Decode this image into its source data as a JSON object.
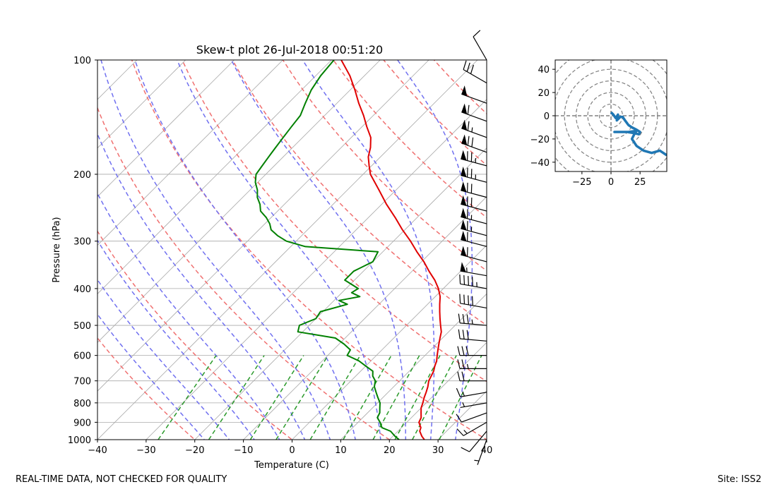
{
  "chart_data": [
    {
      "type": "line",
      "title": "Skew-t plot 26-Jul-2018 00:51:20",
      "xlabel": "Temperature (C)",
      "ylabel": "Pressure (hPa)",
      "xlim": [
        -40,
        40
      ],
      "ylim": [
        1000,
        100
      ],
      "y_scale": "log",
      "x_ticks": [
        -40,
        -30,
        -20,
        -10,
        0,
        10,
        20,
        30,
        40
      ],
      "y_ticks": [
        100,
        200,
        300,
        400,
        500,
        600,
        700,
        800,
        900,
        1000
      ],
      "grid": true,
      "colors": {
        "temperature": "#e00000",
        "dewpoint": "#008000",
        "dry_adiabats": "#f07070",
        "moist_adiabats": "#7070f0",
        "mixing_ratio": "#2a9a2a",
        "isotherms": "#aaaaaa",
        "barbs": "#000000"
      },
      "series": [
        {
          "key": "temperature",
          "pressure": [
            1000,
            980,
            950,
            930,
            900,
            875,
            850,
            825,
            800,
            775,
            750,
            725,
            700,
            680,
            660,
            640,
            620,
            600,
            580,
            560,
            540,
            520,
            500,
            480,
            460,
            440,
            420,
            400,
            380,
            360,
            340,
            320,
            300,
            280,
            260,
            240,
            220,
            200,
            190,
            180,
            170,
            160,
            150,
            140,
            130,
            120,
            110,
            100
          ],
          "values": [
            27.2,
            26.0,
            24.5,
            24.0,
            22.5,
            22.0,
            21.0,
            20.0,
            19.3,
            18.5,
            17.8,
            17.0,
            16.0,
            15.5,
            15.0,
            14.2,
            13.5,
            12.5,
            11.5,
            10.5,
            9.5,
            8.5,
            7.0,
            5.5,
            4.0,
            2.5,
            1.0,
            -1.0,
            -3.5,
            -6.5,
            -9.5,
            -13.0,
            -16.5,
            -20.5,
            -24.5,
            -29.0,
            -33.5,
            -38.5,
            -40.5,
            -42.5,
            -44.0,
            -46.0,
            -49.0,
            -52.0,
            -55.5,
            -59.0,
            -63.0,
            -68.0
          ]
        },
        {
          "key": "dewpoint",
          "pressure": [
            1000,
            980,
            950,
            930,
            900,
            875,
            850,
            825,
            800,
            775,
            750,
            725,
            700,
            680,
            660,
            640,
            620,
            600,
            580,
            560,
            540,
            520,
            500,
            480,
            460,
            440,
            430,
            420,
            410,
            400,
            380,
            360,
            340,
            320,
            310,
            300,
            290,
            280,
            270,
            260,
            250,
            240,
            230,
            220,
            210,
            200,
            190,
            180,
            170,
            160,
            150,
            140,
            130,
            120,
            110,
            100
          ],
          "values": [
            22.0,
            20.5,
            18.5,
            16.0,
            14.5,
            13.0,
            12.5,
            11.5,
            10.5,
            9.0,
            7.5,
            6.0,
            5.0,
            3.5,
            2.5,
            0.0,
            -2.5,
            -6.0,
            -6.5,
            -9.0,
            -12.0,
            -21.0,
            -22.0,
            -20.0,
            -20.5,
            -16.5,
            -19.0,
            -15.5,
            -18.0,
            -17.5,
            -22.0,
            -22.0,
            -20.0,
            -21.0,
            -37.0,
            -42.0,
            -45.0,
            -47.5,
            -49.0,
            -51.0,
            -53.5,
            -55.0,
            -57.0,
            -58.5,
            -60.5,
            -62.0,
            -62.5,
            -63.0,
            -63.5,
            -64.0,
            -64.5,
            -65.0,
            -66.5,
            -68.0,
            -69.0,
            -69.5
          ]
        }
      ],
      "wind_barbs": {
        "pressure": [
          1000,
          950,
          900,
          850,
          800,
          750,
          700,
          650,
          600,
          550,
          500,
          450,
          400,
          370,
          340,
          310,
          290,
          270,
          250,
          230,
          210,
          190,
          175,
          160,
          145,
          130,
          115,
          100
        ],
        "speed_kt": [
          5,
          10,
          15,
          10,
          5,
          15,
          20,
          25,
          30,
          30,
          35,
          40,
          45,
          55,
          60,
          60,
          65,
          65,
          70,
          70,
          75,
          75,
          70,
          65,
          60,
          50,
          30,
          10
        ],
        "direction_deg": [
          200,
          220,
          240,
          250,
          260,
          260,
          270,
          270,
          270,
          275,
          275,
          280,
          280,
          280,
          285,
          285,
          285,
          285,
          285,
          285,
          285,
          285,
          290,
          290,
          290,
          290,
          300,
          330
        ]
      }
    },
    {
      "type": "line",
      "title": "",
      "xlim": [
        -48,
        48
      ],
      "ylim": [
        -48,
        48
      ],
      "x_ticks": [
        -25,
        0,
        25
      ],
      "y_ticks": [
        -40,
        -20,
        0,
        20,
        40
      ],
      "series": [
        {
          "key": "hodograph",
          "u": [
            0,
            2,
            4,
            6,
            5,
            8,
            10,
            12,
            15,
            18,
            22,
            25,
            24,
            20,
            14,
            8,
            3,
            3,
            15,
            22,
            20,
            18,
            22,
            28,
            35,
            42,
            48
          ],
          "v": [
            3,
            1,
            -2,
            1,
            -4,
            -1,
            -1,
            -4,
            -8,
            -10,
            -12,
            -14,
            -16,
            -15,
            -14,
            -14,
            -14,
            -14,
            -14,
            -13,
            -16,
            -20,
            -26,
            -30,
            -32,
            -30,
            -34
          ]
        }
      ],
      "color": "#1f77b4"
    }
  ],
  "footer": {
    "left": "REAL-TIME DATA, NOT CHECKED FOR QUALITY",
    "right": "Site: ISS2"
  }
}
